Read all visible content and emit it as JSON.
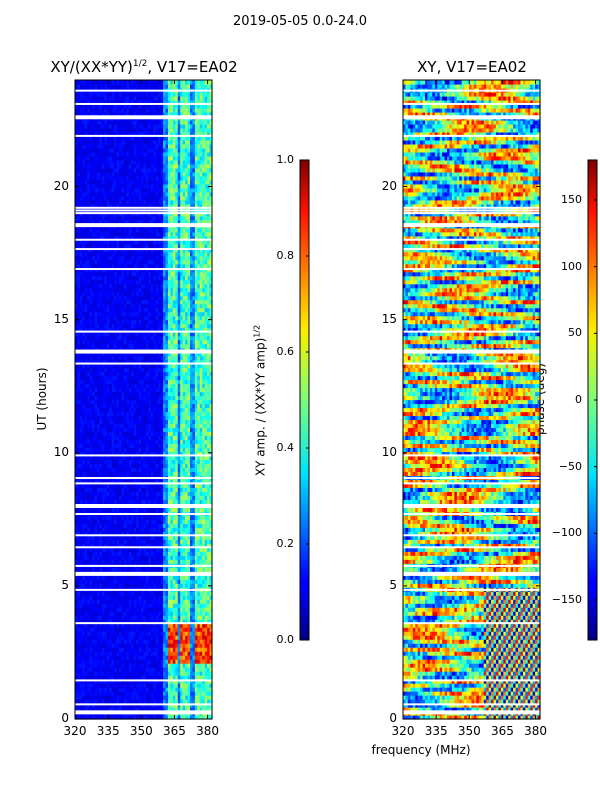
{
  "suptitle": "2019-05-05 0.0-24.0",
  "chart_data": [
    {
      "type": "heatmap",
      "title_main": "XY/(XX*YY)",
      "title_sup": "1/2",
      "title_tail": ", V17=EA02",
      "xlabel": "",
      "ylabel": "UT (hours)",
      "xlim": [
        320,
        382
      ],
      "ylim": [
        0,
        24
      ],
      "xticks": [
        "320",
        "335",
        "350",
        "365",
        "380"
      ],
      "xtick_values": [
        320,
        335,
        350,
        365,
        380
      ],
      "yticks": [
        "0",
        "5",
        "10",
        "15",
        "20"
      ],
      "ytick_values": [
        0,
        5,
        10,
        15,
        20
      ],
      "colorbar": {
        "label_main": "XY amp. / (XX*YY amp)",
        "label_sup": "1/2",
        "range": [
          0.0,
          1.0
        ],
        "ticks": [
          "0.0",
          "0.2",
          "0.4",
          "0.6",
          "0.8",
          "1.0"
        ],
        "tick_values": [
          0.0,
          0.2,
          0.4,
          0.6,
          0.8,
          1.0
        ]
      },
      "bright_bands_mhz": [
        [
          362,
          366
        ],
        [
          368,
          372
        ],
        [
          374,
          378
        ],
        [
          378,
          382
        ]
      ],
      "high_amplitude_window": {
        "ut": [
          2.1,
          3.6
        ],
        "freq": [
          362,
          382
        ],
        "value": 0.9
      }
    },
    {
      "type": "heatmap",
      "title": "XY, V17=EA02",
      "xlabel": "frequency (MHz)",
      "ylabel": "",
      "xlim": [
        320,
        382
      ],
      "ylim": [
        0,
        24
      ],
      "xticks": [
        "320",
        "335",
        "350",
        "365",
        "380"
      ],
      "xtick_values": [
        320,
        335,
        350,
        365,
        380
      ],
      "yticks": [
        "0",
        "5",
        "10",
        "15",
        "20"
      ],
      "ytick_values": [
        0,
        5,
        10,
        15,
        20
      ],
      "colorbar": {
        "label": "phase (deg)",
        "range": [
          -180,
          180
        ],
        "ticks": [
          "−150",
          "−100",
          "−50",
          "0",
          "50",
          "100",
          "150"
        ],
        "tick_values": [
          -150,
          -100,
          -50,
          0,
          50,
          100,
          150
        ]
      }
    }
  ],
  "flagged_ut_hours": [
    0.25,
    0.55,
    1.45,
    3.6,
    4.85,
    5.45,
    5.75,
    6.45,
    6.9,
    7.7,
    8.0,
    8.85,
    9.05,
    9.9,
    13.35,
    13.8,
    14.55,
    16.9,
    17.65,
    18.0,
    18.55,
    19.0,
    19.1,
    19.2,
    21.9,
    22.6,
    23.1,
    23.6
  ]
}
